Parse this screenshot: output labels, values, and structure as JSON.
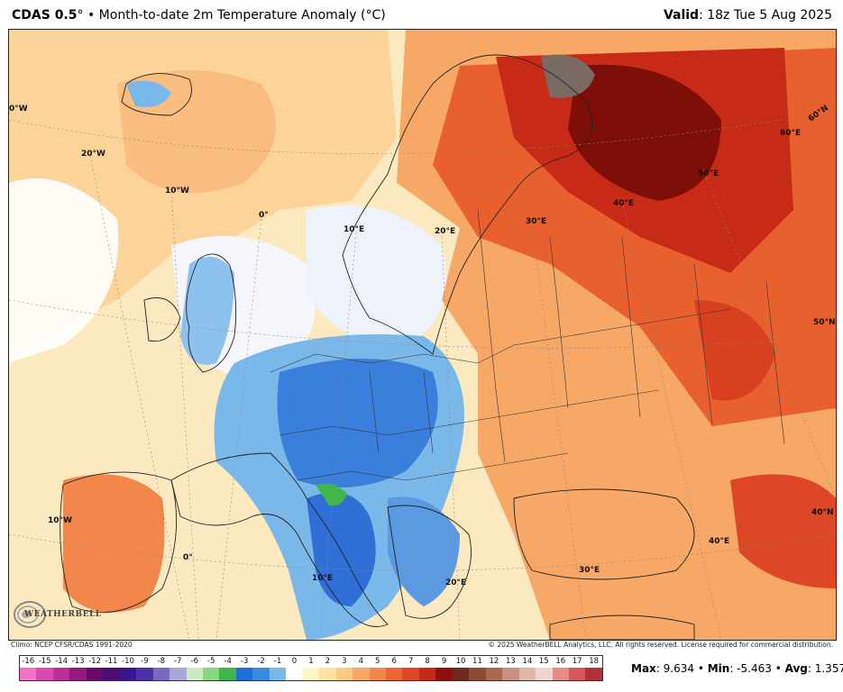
{
  "header": {
    "model": "CDAS 0.5",
    "degree": "°",
    "bullet": "•",
    "product": "Month-to-date 2m Temperature Anomaly (",
    "unit": "°C",
    "product_close": ")",
    "valid_label": "Valid",
    "valid_value": ": 18z Tue 5 Aug 2025"
  },
  "map": {
    "region": "Europe",
    "lon_labels": [
      "0°W",
      "20°W",
      "10°W",
      "0°",
      "10°E",
      "20°E",
      "30°E",
      "40°E",
      "50°E",
      "60°E",
      "60°N",
      "50°N",
      "40°N",
      "40°E",
      "30°E",
      "20°E",
      "10°E",
      "0°",
      "10°W"
    ],
    "colors": {
      "strong_warm": "#7a0d06",
      "warm": "#e2502a",
      "mild_warm": "#f9b27a",
      "slight_warm": "#fde7b8",
      "neutral": "#ffffff",
      "cool": "#4e8ad9",
      "cold": "#2456c8",
      "green_anomaly": "#3fb54a",
      "land_border": "#222222"
    }
  },
  "footer": {
    "climo": "Climo: NCEP CFSR/CDAS 1991-2020",
    "copyright": "© 2025 WeatherBELL Analytics, LLC. All rights reserved. License required for commercial distribution."
  },
  "colorbar": {
    "labels": [
      "-16",
      "-15",
      "-14",
      "-13",
      "-12",
      "-11",
      "-10",
      "-9",
      "-8",
      "-7",
      "-6",
      "-5",
      "-4",
      "-3",
      "-2",
      "-1",
      "0",
      "1",
      "2",
      "3",
      "4",
      "5",
      "6",
      "7",
      "8",
      "9",
      "10",
      "11",
      "12",
      "13",
      "14",
      "15",
      "16",
      "17",
      "18"
    ],
    "colors": [
      "#f073c8",
      "#d94bb1",
      "#bb2e9b",
      "#95197f",
      "#6a0a68",
      "#4b0c73",
      "#3a1590",
      "#4d30a8",
      "#7a67bf",
      "#a9a6d8",
      "#cfe9c4",
      "#88d882",
      "#3fb54a",
      "#1d6fd8",
      "#3a8be0",
      "#7ab8ea",
      "#ffffff",
      "#fff6c6",
      "#fde2a2",
      "#fbc885",
      "#f8a866",
      "#f3864a",
      "#ec6636",
      "#dd4727",
      "#c32a17",
      "#8f0f0a",
      "#6c2a1f",
      "#8a4a34",
      "#a86852",
      "#c89080",
      "#e2b7aa",
      "#f2d5cf",
      "#e88a88",
      "#d45858",
      "#b52f3a"
    ]
  },
  "stats": {
    "max_label": "Max",
    "max_value": ": 9.634",
    "min_label": "Min",
    "min_value": ": -5.463",
    "avg_label": "Avg",
    "avg_value": ": 1.357",
    "sep": " • "
  },
  "logo": {
    "text": "WEATHERBELL",
    "icon": "weatherbell-swirl-icon"
  }
}
